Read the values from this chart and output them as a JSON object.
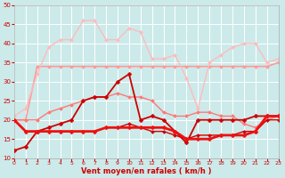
{
  "xlabel": "Vent moyen/en rafales ( km/h )",
  "xlim": [
    0,
    23
  ],
  "ylim": [
    10,
    50
  ],
  "yticks": [
    10,
    15,
    20,
    25,
    30,
    35,
    40,
    45,
    50
  ],
  "xticks": [
    0,
    1,
    2,
    3,
    4,
    5,
    6,
    7,
    8,
    9,
    10,
    11,
    12,
    13,
    14,
    15,
    16,
    17,
    18,
    19,
    20,
    21,
    22,
    23
  ],
  "bg_color": "#cceaea",
  "grid_color": "#ffffff",
  "series": [
    {
      "name": "salmon_flat_34",
      "x": [
        0,
        1,
        2,
        3,
        4,
        5,
        6,
        7,
        8,
        9,
        10,
        11,
        12,
        13,
        14,
        15,
        16,
        17,
        18,
        19,
        20,
        21,
        22,
        23
      ],
      "y": [
        20,
        20,
        34,
        34,
        34,
        34,
        34,
        34,
        34,
        34,
        34,
        34,
        34,
        34,
        34,
        34,
        34,
        34,
        34,
        34,
        34,
        34,
        34,
        35
      ],
      "color": "#ff9999",
      "lw": 1.2,
      "marker": "D",
      "ms": 2.0,
      "zorder": 2
    },
    {
      "name": "salmon_peak",
      "x": [
        0,
        1,
        2,
        3,
        4,
        5,
        6,
        7,
        8,
        9,
        10,
        11,
        12,
        13,
        14,
        15,
        16,
        17,
        18,
        19,
        20,
        21,
        22,
        23
      ],
      "y": [
        21,
        23,
        32,
        39,
        41,
        41,
        46,
        46,
        41,
        41,
        44,
        43,
        36,
        36,
        37,
        31,
        23,
        35,
        37,
        39,
        40,
        40,
        35,
        36
      ],
      "color": "#ffbbbb",
      "lw": 1.0,
      "marker": "D",
      "ms": 2.0,
      "zorder": 2
    },
    {
      "name": "pink_mid",
      "x": [
        0,
        1,
        2,
        3,
        4,
        5,
        6,
        7,
        8,
        9,
        10,
        11,
        12,
        13,
        14,
        15,
        16,
        17,
        18,
        19,
        20,
        21,
        22,
        23
      ],
      "y": [
        20,
        20,
        20,
        22,
        23,
        24,
        25,
        26,
        26,
        27,
        26,
        26,
        25,
        22,
        21,
        21,
        22,
        22,
        21,
        21,
        19,
        18,
        20,
        21
      ],
      "color": "#ff7777",
      "lw": 1.0,
      "marker": "D",
      "ms": 2.0,
      "zorder": 3
    },
    {
      "name": "dark_red_rising",
      "x": [
        0,
        1,
        2,
        3,
        4,
        5,
        6,
        7,
        8,
        9,
        10,
        11,
        12,
        13,
        14,
        15,
        16,
        17,
        18,
        19,
        20,
        21,
        22,
        23
      ],
      "y": [
        12,
        13,
        17,
        18,
        19,
        20,
        25,
        26,
        26,
        30,
        32,
        20,
        21,
        20,
        17,
        14,
        20,
        20,
        20,
        20,
        20,
        21,
        21,
        21
      ],
      "color": "#cc0000",
      "lw": 1.3,
      "marker": "D",
      "ms": 2.5,
      "zorder": 4
    },
    {
      "name": "dark_red_flat_lower",
      "x": [
        0,
        1,
        2,
        3,
        4,
        5,
        6,
        7,
        8,
        9,
        10,
        11,
        12,
        13,
        14,
        15,
        16,
        17,
        18,
        19,
        20,
        21,
        22,
        23
      ],
      "y": [
        20,
        17,
        17,
        17,
        17,
        17,
        17,
        17,
        18,
        18,
        18,
        18,
        18,
        18,
        17,
        15,
        15,
        15,
        16,
        16,
        16,
        17,
        21,
        21
      ],
      "color": "#ee1111",
      "lw": 2.0,
      "marker": "D",
      "ms": 2.5,
      "zorder": 5
    },
    {
      "name": "dark_red_flat2",
      "x": [
        0,
        1,
        2,
        3,
        4,
        5,
        6,
        7,
        8,
        9,
        10,
        11,
        12,
        13,
        14,
        15,
        16,
        17,
        18,
        19,
        20,
        21,
        22,
        23
      ],
      "y": [
        20,
        17,
        17,
        17,
        17,
        17,
        17,
        17,
        18,
        18,
        19,
        18,
        17,
        17,
        16,
        15,
        16,
        16,
        16,
        16,
        17,
        17,
        20,
        20
      ],
      "color": "#cc0000",
      "lw": 1.0,
      "marker": "D",
      "ms": 2.0,
      "zorder": 3
    }
  ]
}
